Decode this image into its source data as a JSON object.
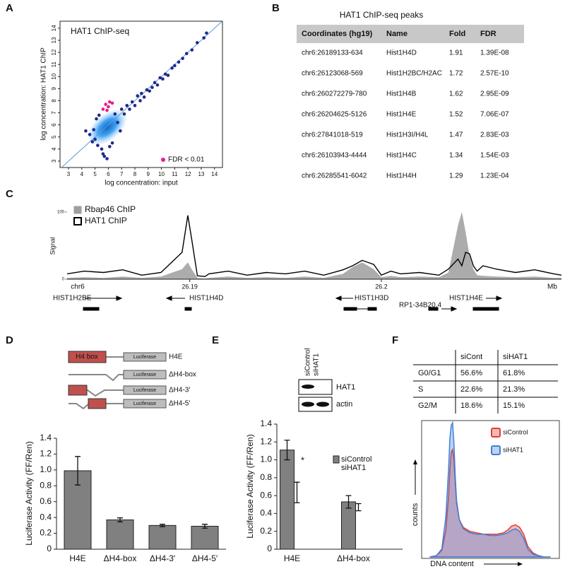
{
  "panel_labels": [
    "A",
    "B",
    "C",
    "D",
    "E",
    "F"
  ],
  "chart_data": [
    {
      "type": "scatter",
      "title": "HAT1 ChIP-seq",
      "xlabel": "log concentration: input",
      "ylabel": "log concentration: HAT1 ChIP",
      "xlim": [
        2.36,
        14.6
      ],
      "ylim": [
        2.47,
        14.58
      ],
      "xticks": [
        3,
        4,
        5,
        6,
        7,
        8,
        9,
        10,
        11,
        12,
        13,
        14
      ],
      "yticks": [
        3,
        4,
        5,
        6,
        7,
        8,
        9,
        10,
        11,
        12,
        13,
        14
      ],
      "series": [
        {
          "color": "#1f2a8a",
          "x": [
            4.3,
            4.6,
            4.8,
            5.0,
            5.1,
            5.2,
            5.3,
            5.5,
            5.6,
            5.7,
            5.9,
            6.1,
            6.5,
            6.7,
            6.9,
            7.0,
            7.2,
            7.4,
            7.6,
            7.8,
            8.0,
            8.2,
            8.4,
            8.5,
            8.7,
            8.9,
            9.1,
            9.3,
            9.5,
            9.7,
            9.9,
            10.1,
            10.3,
            10.5,
            10.8,
            11.0,
            11.3,
            11.6,
            11.9,
            12.3,
            12.7,
            13.2,
            13.4,
            6.3,
            4.9
          ],
          "y": [
            5.5,
            5.2,
            4.6,
            4.8,
            6.5,
            4.3,
            6.8,
            4.0,
            3.6,
            3.4,
            3.2,
            4.2,
            6.9,
            6.2,
            5.5,
            7.3,
            6.9,
            7.6,
            7.3,
            7.9,
            7.6,
            8.4,
            8.0,
            8.6,
            8.3,
            8.9,
            8.8,
            9.1,
            9.5,
            9.3,
            9.9,
            9.8,
            10.2,
            10.1,
            10.7,
            10.9,
            11.2,
            11.5,
            11.9,
            12.2,
            12.8,
            13.2,
            13.6,
            4.5,
            5.6
          ]
        },
        {
          "name": "FDR < 0.01",
          "color": "#ec1c8c",
          "x": [
            5.6,
            5.8,
            6.0,
            6.1,
            6.3,
            5.9
          ],
          "y": [
            7.3,
            7.7,
            7.5,
            7.9,
            7.8,
            7.2
          ]
        }
      ]
    },
    {
      "type": "track",
      "ylabel": "Signal",
      "chromosome": "chr6",
      "unit": "Mb",
      "xlim": [
        26.1836,
        26.2094
      ],
      "xticks": [
        26.19,
        26.2
      ],
      "ylim": [
        0,
        100
      ],
      "yticks": [
        0,
        100
      ],
      "x": [
        26.1836,
        26.1845,
        26.1855,
        26.1865,
        26.1875,
        26.1885,
        26.1896,
        26.1899,
        26.1901,
        26.1904,
        26.1908,
        26.191,
        26.192,
        26.193,
        26.194,
        26.195,
        26.196,
        26.197,
        26.198,
        26.1985,
        26.199,
        26.1993,
        26.1996,
        26.2,
        26.2005,
        26.201,
        26.202,
        26.203,
        26.2035,
        26.204,
        26.2042,
        26.2044,
        26.2046,
        26.2048,
        26.205,
        26.2053,
        26.206,
        26.207,
        26.208,
        26.209,
        26.2094
      ],
      "series": [
        {
          "name": "Rbap46 ChIP",
          "color": "#9e9e9e",
          "style": "area",
          "values": [
            2,
            3,
            2,
            4,
            2,
            4,
            15,
            25,
            15,
            2,
            1,
            2,
            4,
            2,
            3,
            2,
            4,
            2,
            8,
            18,
            25,
            20,
            15,
            3,
            5,
            3,
            4,
            3,
            10,
            80,
            100,
            70,
            35,
            15,
            6,
            5,
            4,
            3,
            4,
            2,
            2
          ]
        },
        {
          "name": "HAT1 ChIP",
          "color": "#000000",
          "style": "line",
          "values": [
            8,
            12,
            10,
            14,
            6,
            10,
            40,
            95,
            60,
            5,
            4,
            8,
            12,
            6,
            10,
            8,
            12,
            6,
            14,
            20,
            28,
            25,
            22,
            6,
            12,
            8,
            10,
            6,
            15,
            30,
            20,
            40,
            38,
            20,
            12,
            20,
            15,
            10,
            14,
            8,
            6
          ]
        }
      ],
      "genes": [
        "HIST1H2BE",
        "HIST1H4D",
        "HIST1H3D",
        "RP1-34B20.4",
        "HIST1H4E"
      ]
    },
    {
      "type": "bar",
      "ylabel": "Luciferase Activity (FF/Ren)",
      "categories": [
        "H4E",
        "ΔH4-box",
        "ΔH4-3′",
        "ΔH4-5′"
      ],
      "ylim": [
        0,
        1.4
      ],
      "yticks": [
        0,
        0.2,
        0.4,
        0.6,
        0.8,
        {
          "value": 1,
          "label": "1.0"
        },
        1.2,
        1.4
      ],
      "series": [
        {
          "color": "#808080",
          "edgecolor": "#222222",
          "values": [
            0.99,
            0.37,
            0.3,
            0.29
          ],
          "errors": [
            0.18,
            0.025,
            0.015,
            0.025
          ]
        }
      ]
    },
    {
      "type": "bar",
      "ylabel": "Luciferase Activity (FF/Ren)",
      "categories": [
        "H4E",
        "ΔH4-box"
      ],
      "ylim": [
        0,
        1.4
      ],
      "yticks": [
        0,
        0.2,
        0.4,
        0.6,
        0.8,
        {
          "value": 1,
          "label": "1.0"
        },
        1.2,
        1.4
      ],
      "series": [
        {
          "name": "siControl",
          "color": "#808080",
          "edgecolor": "#222222",
          "values": [
            1.11,
            0.53
          ],
          "errors": [
            0.11,
            0.07
          ]
        },
        {
          "name": "siHAT1",
          "color": "none",
          "edgecolor": "none",
          "values": [
            0.635,
            0.47
          ],
          "errors": [
            0.115,
            0.04
          ]
        }
      ],
      "annotations": [
        "*"
      ]
    },
    {
      "type": "area",
      "xlabel": "DNA content",
      "ylabel": "counts",
      "xlim": [
        0,
        100
      ],
      "ylim": [
        0,
        100
      ],
      "x": [
        5,
        10,
        14,
        17,
        19,
        20,
        21,
        22,
        23,
        24,
        25,
        27,
        30,
        35,
        40,
        45,
        50,
        55,
        60,
        63,
        66,
        69,
        72,
        75,
        78,
        82,
        86,
        90,
        95
      ],
      "series": [
        {
          "name": "siControl",
          "color": "#e53935",
          "values": [
            0,
            1,
            5,
            20,
            45,
            65,
            78,
            80,
            72,
            55,
            40,
            28,
            22,
            19,
            18,
            17,
            17,
            17,
            18,
            20,
            23,
            24,
            22,
            17,
            8,
            3,
            1,
            0,
            0
          ]
        },
        {
          "name": "siHAT1",
          "color": "#3f7fd9",
          "values": [
            0,
            1,
            6,
            30,
            65,
            88,
            98,
            100,
            85,
            60,
            42,
            28,
            21,
            18,
            17,
            17,
            16,
            16,
            17,
            18,
            20,
            21,
            19,
            14,
            6,
            2,
            1,
            0,
            0
          ]
        }
      ]
    }
  ],
  "tables": [
    {
      "title": "HAT1 ChIP-seq peaks",
      "header": [
        "Coordinates (hg19)",
        "Name",
        "Fold",
        "FDR"
      ],
      "rows": [
        [
          "chr6:26189133-634",
          "Hist1H4D",
          "1.91",
          "1.39E-08"
        ],
        [
          "chr6:26123068-569",
          "Hist1H2BC/H2AC",
          "1.72",
          "2.57E-10"
        ],
        [
          "chr6:260272279-780",
          "Hist1H4B",
          "1.62",
          "2.95E-09"
        ],
        [
          "chr6:26204625-5126",
          "Hist1H4E",
          "1.52",
          "7.06E-07"
        ],
        [
          "chr6:27841018-519",
          "Hist1H3I/H4L",
          "1.47",
          "2.83E-03"
        ],
        [
          "chr6:26103943-4444",
          "Hist1H4C",
          "1.34",
          "1.54E-03"
        ],
        [
          "chr6:26285541-6042",
          "Hist1H4H",
          "1.29",
          "1.23E-04"
        ]
      ]
    },
    {
      "header": [
        "siCont",
        "siHAT1"
      ],
      "rows": [
        [
          "G0/G1",
          "56.6%",
          "61.8%"
        ],
        [
          "S",
          "22.6%",
          "21.3%"
        ],
        [
          "G2/M",
          "18.6%",
          "15.1%"
        ]
      ]
    }
  ],
  "schematic": {
    "box": "H4 box",
    "reporter": "Luciferase",
    "constructs": [
      "H4E",
      "ΔH4-box",
      "ΔH4-3′",
      "ΔH4-5′"
    ]
  },
  "blot": {
    "lanes": [
      "siControl",
      "siHAT1"
    ],
    "bands": [
      "HAT1",
      "actin"
    ]
  }
}
